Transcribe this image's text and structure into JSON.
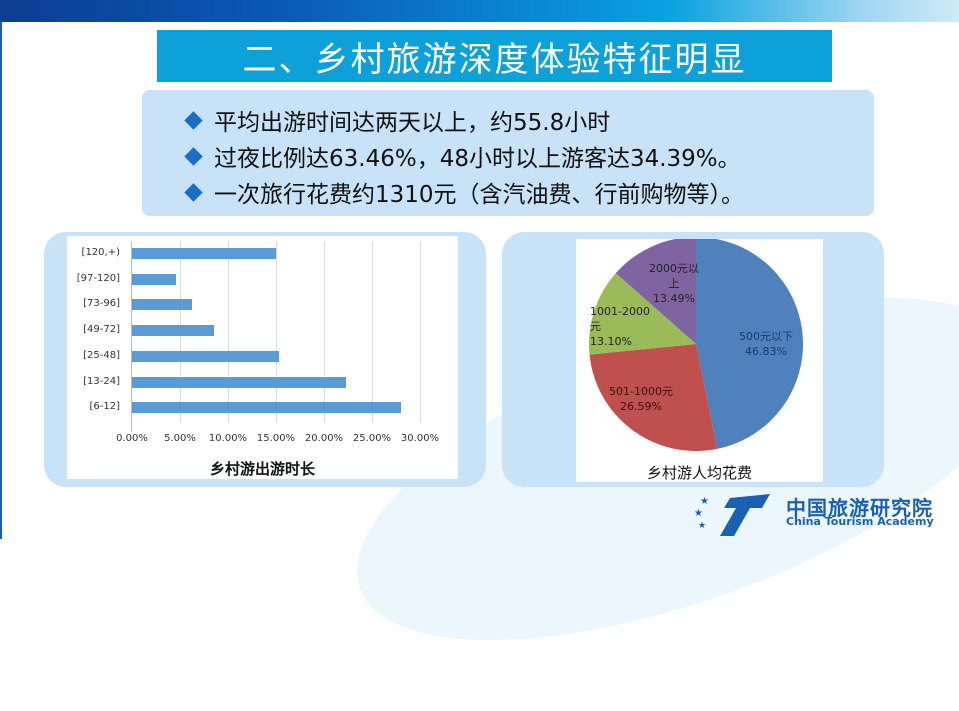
{
  "title": "二、乡村旅游深度体验特征明显",
  "bullets": [
    "平均出游时间达两天以上，约55.8小时",
    "过夜比例达63.46%，48小时以上游客达34.39%。",
    "一次旅行花费约1310元（含汽油费、行前购物等）。"
  ],
  "logo": {
    "cn": "中国旅游研究院",
    "en": "China Tourism Academy"
  },
  "chart_data": [
    {
      "type": "bar",
      "orientation": "horizontal",
      "title": "乡村游出游时长",
      "categories": [
        "[120,+)",
        "[97-120]",
        "[73-96]",
        "[49-72]",
        "[25-48]",
        "[13-24]",
        "[6-12]"
      ],
      "values": [
        15.0,
        4.6,
        6.2,
        8.5,
        15.3,
        22.3,
        28.0
      ],
      "xlabel": "",
      "ylabel": "",
      "xlim": [
        0,
        30
      ],
      "tick_labels": [
        "0.00%",
        "5.00%",
        "10.00%",
        "15.00%",
        "20.00%",
        "25.00%",
        "30.00%"
      ],
      "grid": true,
      "color": "#5b9bd5"
    },
    {
      "type": "pie",
      "title": "乡村游人均花费",
      "categories": [
        "500元以下",
        "501-1000元",
        "1001-2000元",
        "2000元以上"
      ],
      "values": [
        46.83,
        26.59,
        13.1,
        13.49
      ],
      "labels": [
        "46.83%",
        "26.59%",
        "13.10%",
        "13.49%"
      ],
      "colors": [
        "#4f81bd",
        "#c0504d",
        "#9bbb59",
        "#8064a2"
      ]
    }
  ]
}
